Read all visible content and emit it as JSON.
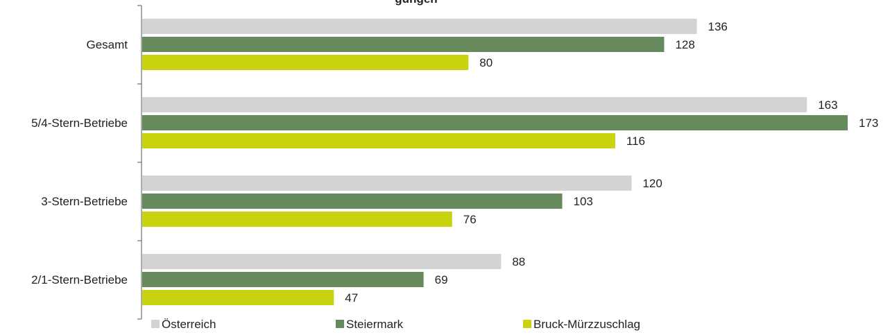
{
  "chart_data": {
    "type": "bar",
    "orientation": "horizontal",
    "title": "",
    "title_partial": "gungen",
    "categories": [
      "Gesamt",
      "5/4-Stern-Betriebe",
      "3-Stern-Betriebe",
      "2/1-Stern-Betriebe"
    ],
    "series": [
      {
        "name": "Österreich",
        "color": "#d3d3d3",
        "values": [
          136,
          163,
          120,
          88
        ]
      },
      {
        "name": "Steiermark",
        "color": "#678a5c",
        "values": [
          128,
          173,
          103,
          69
        ]
      },
      {
        "name": "Bruck-Mürzzuschlag",
        "color": "#c9d30f",
        "values": [
          80,
          116,
          76,
          47
        ]
      }
    ],
    "xlim": [
      0,
      173
    ],
    "grid": false,
    "legend_position": "bottom"
  }
}
